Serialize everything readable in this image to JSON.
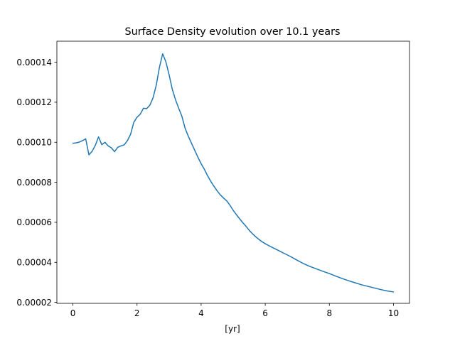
{
  "chart_data": {
    "type": "line",
    "title": "Surface Density evolution over 10.1 years",
    "xlabel": "[yr]",
    "ylabel": "",
    "xlim": [
      -0.5,
      10.5
    ],
    "ylim": [
      1.95e-05,
      0.0001505
    ],
    "x_ticks": [
      0,
      2,
      4,
      6,
      8,
      10
    ],
    "x_tick_labels": [
      "0",
      "2",
      "4",
      "6",
      "8",
      "10"
    ],
    "y_ticks": [
      2e-05,
      4e-05,
      6e-05,
      8e-05,
      0.0001,
      0.00012,
      0.00014
    ],
    "y_tick_labels": [
      "0.00002",
      "0.00004",
      "0.00006",
      "0.00008",
      "0.00010",
      "0.00012",
      "0.00014"
    ],
    "grid": false,
    "legend": "none",
    "colors": {
      "line": "#1f77b4",
      "axes": "#000000",
      "background": "#ffffff"
    },
    "series": [
      {
        "x": [
          0.0,
          0.1,
          0.2,
          0.3,
          0.4,
          0.5,
          0.6,
          0.7,
          0.8,
          0.9,
          1.0,
          1.1,
          1.2,
          1.3,
          1.4,
          1.5,
          1.6,
          1.7,
          1.8,
          1.9,
          2.0,
          2.1,
          2.2,
          2.3,
          2.4,
          2.5,
          2.6,
          2.7,
          2.8,
          2.9,
          3.0,
          3.1,
          3.2,
          3.3,
          3.4,
          3.5,
          3.6,
          3.7,
          3.8,
          3.9,
          4.0,
          4.1,
          4.2,
          4.3,
          4.4,
          4.5,
          4.6,
          4.7,
          4.8,
          4.9,
          5.0,
          5.1,
          5.2,
          5.3,
          5.4,
          5.5,
          5.6,
          5.7,
          5.8,
          5.9,
          6.0,
          6.2,
          6.4,
          6.6,
          6.8,
          7.0,
          7.2,
          7.4,
          7.6,
          7.8,
          8.0,
          8.2,
          8.4,
          8.6,
          8.8,
          9.0,
          9.2,
          9.4,
          9.6,
          9.8,
          10.0
        ],
        "y": [
          9.95e-05,
          9.97e-05,
          0.0001001,
          0.0001008,
          0.0001017,
          9.37e-05,
          9.55e-05,
          9.85e-05,
          0.0001027,
          9.88e-05,
          0.0001,
          9.82e-05,
          9.72e-05,
          9.53e-05,
          9.75e-05,
          9.82e-05,
          9.87e-05,
          0.0001008,
          0.000104,
          0.00011,
          0.0001125,
          0.000114,
          0.000117,
          0.0001168,
          0.0001185,
          0.0001222,
          0.0001285,
          0.0001375,
          0.0001442,
          0.0001402,
          0.0001338,
          0.0001265,
          0.0001213,
          0.000117,
          0.000113,
          0.000107,
          0.000103,
          9.95e-05,
          9.6e-05,
          9.25e-05,
          8.93e-05,
          8.65e-05,
          8.33e-05,
          8.05e-05,
          7.8e-05,
          7.57e-05,
          7.37e-05,
          7.21e-05,
          7.07e-05,
          6.85e-05,
          6.6e-05,
          6.38e-05,
          6.18e-05,
          5.98e-05,
          5.8e-05,
          5.6e-05,
          5.43e-05,
          5.28e-05,
          5.15e-05,
          5.03e-05,
          4.93e-05,
          4.76e-05,
          4.6e-05,
          4.44e-05,
          4.28e-05,
          4.1e-05,
          3.93e-05,
          3.79e-05,
          3.67e-05,
          3.55e-05,
          3.44e-05,
          3.31e-05,
          3.19e-05,
          3.08e-05,
          2.98e-05,
          2.88e-05,
          2.8e-05,
          2.72e-05,
          2.64e-05,
          2.57e-05,
          2.52e-05
        ]
      }
    ]
  }
}
